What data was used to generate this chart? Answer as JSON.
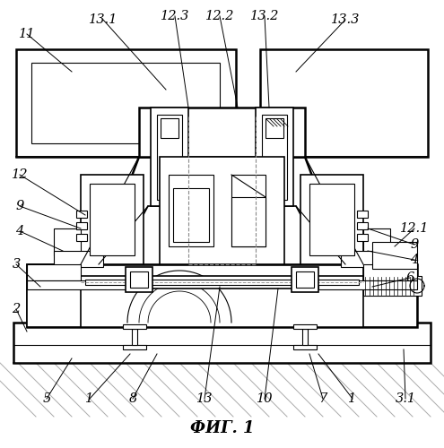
{
  "title": "ФИГ. 1",
  "title_fontsize": 13,
  "bg_color": "#ffffff",
  "lw_thin": 0.8,
  "lw_med": 1.2,
  "lw_thick": 1.8
}
